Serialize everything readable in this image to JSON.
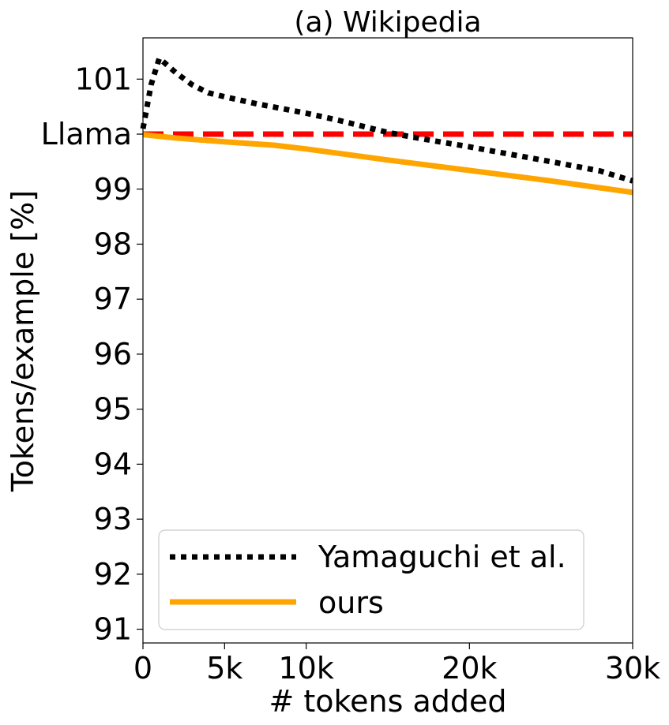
{
  "chart_data": {
    "type": "line",
    "title": "(a) Wikipedia",
    "xlabel": "# tokens added",
    "ylabel": "Tokens/example [%]",
    "xlim": [
      0,
      30000
    ],
    "ylim": [
      90.75,
      101.75
    ],
    "x_ticks": [
      {
        "value": 0,
        "label": "0"
      },
      {
        "value": 5000,
        "label": "5k"
      },
      {
        "value": 10000,
        "label": "10k"
      },
      {
        "value": 20000,
        "label": "20k"
      },
      {
        "value": 30000,
        "label": "30k"
      }
    ],
    "y_ticks": [
      {
        "value": 91,
        "label": "91"
      },
      {
        "value": 92,
        "label": "92"
      },
      {
        "value": 93,
        "label": "93"
      },
      {
        "value": 94,
        "label": "94"
      },
      {
        "value": 95,
        "label": "95"
      },
      {
        "value": 96,
        "label": "96"
      },
      {
        "value": 97,
        "label": "97"
      },
      {
        "value": 98,
        "label": "98"
      },
      {
        "value": 99,
        "label": "99"
      },
      {
        "value": 100,
        "label": "Llama"
      },
      {
        "value": 101,
        "label": "101"
      }
    ],
    "reference_line": {
      "label": "Llama",
      "y": 100,
      "color": "#ff0000",
      "style": "dashed"
    },
    "series": [
      {
        "name": "Yamaguchi et al.",
        "color": "#000000",
        "style": "dotted",
        "x": [
          0,
          500,
          1000,
          2000,
          3000,
          4000,
          5000,
          7000,
          10000,
          12000,
          15000,
          17000,
          20000,
          22000,
          25000,
          28000,
          30000
        ],
        "y": [
          100.1,
          100.9,
          101.38,
          101.12,
          100.9,
          100.75,
          100.68,
          100.55,
          100.38,
          100.25,
          100.03,
          99.92,
          99.77,
          99.66,
          99.5,
          99.33,
          99.15
        ]
      },
      {
        "name": "ours",
        "color": "#ffa500",
        "style": "solid",
        "x": [
          0,
          2000,
          5000,
          8000,
          10000,
          15000,
          20000,
          25000,
          30000
        ],
        "y": [
          99.99,
          99.93,
          99.86,
          99.8,
          99.73,
          99.53,
          99.34,
          99.15,
          98.94
        ]
      }
    ],
    "legend": {
      "position": "lower-left"
    },
    "grid": false
  }
}
